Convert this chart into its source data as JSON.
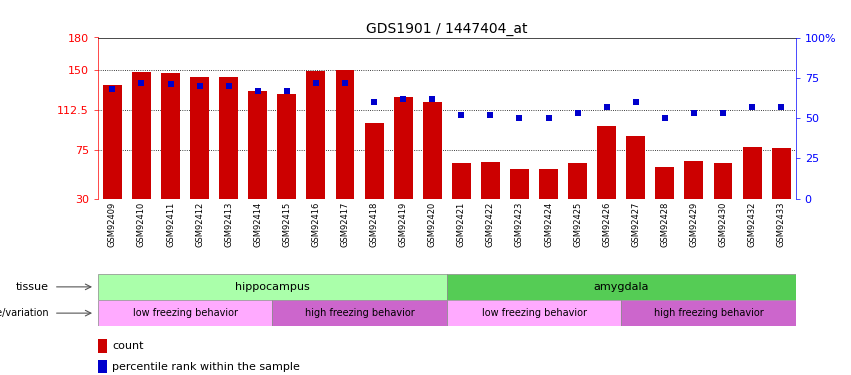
{
  "title": "GDS1901 / 1447404_at",
  "samples": [
    "GSM92409",
    "GSM92410",
    "GSM92411",
    "GSM92412",
    "GSM92413",
    "GSM92414",
    "GSM92415",
    "GSM92416",
    "GSM92417",
    "GSM92418",
    "GSM92419",
    "GSM92420",
    "GSM92421",
    "GSM92422",
    "GSM92423",
    "GSM92424",
    "GSM92425",
    "GSM92426",
    "GSM92427",
    "GSM92428",
    "GSM92429",
    "GSM92430",
    "GSM92432",
    "GSM92433"
  ],
  "counts": [
    136,
    148,
    147,
    143,
    143,
    130,
    127,
    149,
    150,
    100,
    125,
    120,
    63,
    64,
    58,
    58,
    63,
    98,
    88,
    60,
    65,
    63,
    78,
    77
  ],
  "percentiles": [
    68,
    72,
    71,
    70,
    70,
    67,
    67,
    72,
    72,
    60,
    62,
    62,
    52,
    52,
    50,
    50,
    53,
    57,
    60,
    50,
    53,
    53,
    57,
    57
  ],
  "y_min": 30,
  "y_max": 180,
  "y_ticks_left": [
    30,
    75,
    112.5,
    150,
    180
  ],
  "y_ticks_right": [
    0,
    25,
    50,
    75,
    100
  ],
  "bar_color": "#cc0000",
  "dot_color": "#0000cc",
  "tissue_color_hippocampus": "#aaffaa",
  "tissue_color_amygdala": "#55cc55",
  "genotype_color_low": "#ffaaff",
  "genotype_color_high": "#cc66cc",
  "genotype_ranges": [
    [
      0,
      5
    ],
    [
      6,
      11
    ],
    [
      12,
      17
    ],
    [
      18,
      23
    ]
  ],
  "genotype_labels": [
    "low freezing behavior",
    "high freezing behavior",
    "low freezing behavior",
    "high freezing behavior"
  ],
  "background_color": "#ffffff"
}
